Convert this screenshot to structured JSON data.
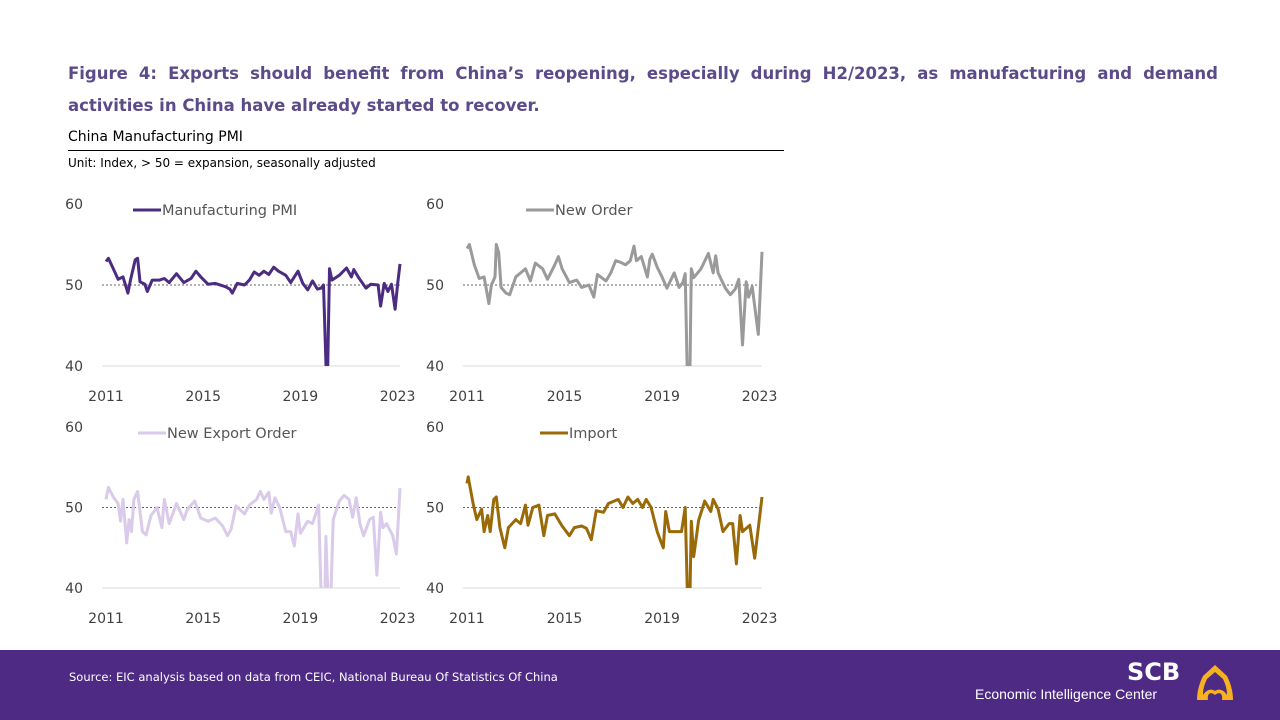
{
  "header": {
    "figure_title": "Figure 4: Exports should benefit from China’s reopening, especially during H2/2023, as manufacturing and demand activities in China have already started to recover.",
    "chart_title": "China Manufacturing PMI",
    "unit": "Unit: Index, > 50 = expansion,  seasonally adjusted"
  },
  "footer": {
    "source": "Source: EIC analysis based on data from CEIC, National Bureau Of Statistics Of China",
    "logo_primary": "SCB",
    "logo_secondary": "Economic Intelligence Center",
    "background_color": "#4e2a84",
    "logo_accent_color": "#f5b21e"
  },
  "chart_data": [
    {
      "type": "line",
      "legend": "Manufacturing PMI",
      "color": "#4b2c80",
      "ylim": [
        40,
        60
      ],
      "yticks": [
        "40",
        "50",
        "60"
      ],
      "xticks": [
        "2011",
        "2015",
        "2019",
        "2023"
      ],
      "reference_line": 50,
      "grid": false,
      "points": [
        [
          2011.0,
          52.9
        ],
        [
          2011.1,
          53.3
        ],
        [
          2011.3,
          52.0
        ],
        [
          2011.5,
          50.7
        ],
        [
          2011.7,
          51.0
        ],
        [
          2011.9,
          49.0
        ],
        [
          2012.0,
          50.5
        ],
        [
          2012.2,
          53.1
        ],
        [
          2012.3,
          53.3
        ],
        [
          2012.4,
          50.4
        ],
        [
          2012.6,
          50.1
        ],
        [
          2012.7,
          49.2
        ],
        [
          2012.9,
          50.6
        ],
        [
          2013.2,
          50.6
        ],
        [
          2013.4,
          50.8
        ],
        [
          2013.6,
          50.3
        ],
        [
          2013.9,
          51.4
        ],
        [
          2014.2,
          50.3
        ],
        [
          2014.5,
          50.8
        ],
        [
          2014.7,
          51.7
        ],
        [
          2014.9,
          51.0
        ],
        [
          2015.2,
          50.1
        ],
        [
          2015.5,
          50.2
        ],
        [
          2015.9,
          49.8
        ],
        [
          2016.1,
          49.5
        ],
        [
          2016.2,
          49.0
        ],
        [
          2016.4,
          50.2
        ],
        [
          2016.7,
          50.0
        ],
        [
          2016.9,
          50.6
        ],
        [
          2017.1,
          51.6
        ],
        [
          2017.3,
          51.2
        ],
        [
          2017.5,
          51.7
        ],
        [
          2017.7,
          51.3
        ],
        [
          2017.9,
          52.2
        ],
        [
          2018.1,
          51.7
        ],
        [
          2018.4,
          51.2
        ],
        [
          2018.6,
          50.3
        ],
        [
          2018.9,
          51.7
        ],
        [
          2019.1,
          50.2
        ],
        [
          2019.3,
          49.4
        ],
        [
          2019.5,
          50.5
        ],
        [
          2019.7,
          49.5
        ],
        [
          2019.85,
          49.6
        ],
        [
          2019.95,
          50.0
        ],
        [
          2020.1,
          35.7
        ],
        [
          2020.2,
          52.0
        ],
        [
          2020.3,
          50.6
        ],
        [
          2020.6,
          51.2
        ],
        [
          2020.9,
          52.1
        ],
        [
          2021.1,
          51.0
        ],
        [
          2021.2,
          51.9
        ],
        [
          2021.4,
          50.9
        ],
        [
          2021.7,
          49.6
        ],
        [
          2021.9,
          50.1
        ],
        [
          2022.2,
          50.0
        ],
        [
          2022.3,
          47.4
        ],
        [
          2022.45,
          50.2
        ],
        [
          2022.6,
          49.2
        ],
        [
          2022.75,
          50.1
        ],
        [
          2022.9,
          47.0
        ],
        [
          2023.0,
          50.1
        ],
        [
          2023.1,
          52.6
        ]
      ]
    },
    {
      "type": "line",
      "legend": "New Order",
      "color": "#9a9a9a",
      "ylim": [
        40,
        60
      ],
      "yticks": [
        "40",
        "50",
        "60"
      ],
      "xticks": [
        "2011",
        "2015",
        "2019",
        "2023"
      ],
      "reference_line": 50,
      "grid": false,
      "points": [
        [
          2011.0,
          54.5
        ],
        [
          2011.1,
          55.0
        ],
        [
          2011.3,
          52.5
        ],
        [
          2011.5,
          50.8
        ],
        [
          2011.7,
          51.0
        ],
        [
          2011.9,
          47.7
        ],
        [
          2012.0,
          50.0
        ],
        [
          2012.15,
          51.0
        ],
        [
          2012.2,
          55.0
        ],
        [
          2012.3,
          54.0
        ],
        [
          2012.4,
          49.7
        ],
        [
          2012.6,
          49.0
        ],
        [
          2012.75,
          48.8
        ],
        [
          2013.0,
          51.0
        ],
        [
          2013.2,
          51.5
        ],
        [
          2013.4,
          52.0
        ],
        [
          2013.6,
          50.5
        ],
        [
          2013.8,
          52.7
        ],
        [
          2014.1,
          52.0
        ],
        [
          2014.3,
          50.7
        ],
        [
          2014.6,
          52.5
        ],
        [
          2014.75,
          53.5
        ],
        [
          2014.9,
          52.0
        ],
        [
          2015.2,
          50.3
        ],
        [
          2015.5,
          50.6
        ],
        [
          2015.7,
          49.7
        ],
        [
          2016.0,
          50.0
        ],
        [
          2016.2,
          48.5
        ],
        [
          2016.35,
          51.3
        ],
        [
          2016.7,
          50.5
        ],
        [
          2016.9,
          51.5
        ],
        [
          2017.1,
          53.0
        ],
        [
          2017.3,
          52.8
        ],
        [
          2017.5,
          52.5
        ],
        [
          2017.7,
          53.0
        ],
        [
          2017.85,
          54.8
        ],
        [
          2017.95,
          53.0
        ],
        [
          2018.15,
          53.5
        ],
        [
          2018.4,
          51.0
        ],
        [
          2018.5,
          53.2
        ],
        [
          2018.6,
          53.8
        ],
        [
          2018.8,
          52.2
        ],
        [
          2019.0,
          51.0
        ],
        [
          2019.2,
          49.6
        ],
        [
          2019.5,
          51.5
        ],
        [
          2019.7,
          49.7
        ],
        [
          2019.85,
          50.3
        ],
        [
          2019.95,
          51.4
        ],
        [
          2020.1,
          29.3
        ],
        [
          2020.2,
          52.0
        ],
        [
          2020.3,
          50.9
        ],
        [
          2020.6,
          52.0
        ],
        [
          2020.9,
          53.9
        ],
        [
          2021.1,
          51.5
        ],
        [
          2021.2,
          53.6
        ],
        [
          2021.3,
          51.5
        ],
        [
          2021.6,
          49.6
        ],
        [
          2021.8,
          48.8
        ],
        [
          2022.0,
          49.5
        ],
        [
          2022.15,
          50.7
        ],
        [
          2022.3,
          42.6
        ],
        [
          2022.45,
          50.4
        ],
        [
          2022.55,
          48.5
        ],
        [
          2022.7,
          49.8
        ],
        [
          2022.95,
          43.9
        ],
        [
          2023.1,
          54.1
        ]
      ]
    },
    {
      "type": "line",
      "legend": "New Export Order",
      "color": "#d9cbe9",
      "ylim": [
        40,
        60
      ],
      "yticks": [
        "40",
        "50",
        "60"
      ],
      "xticks": [
        "2011",
        "2015",
        "2019",
        "2023"
      ],
      "reference_line": 50,
      "grid": false,
      "points": [
        [
          2011.0,
          51.0
        ],
        [
          2011.1,
          52.5
        ],
        [
          2011.3,
          51.3
        ],
        [
          2011.5,
          50.5
        ],
        [
          2011.6,
          48.3
        ],
        [
          2011.7,
          51.0
        ],
        [
          2011.85,
          45.6
        ],
        [
          2011.95,
          48.5
        ],
        [
          2012.05,
          47.0
        ],
        [
          2012.15,
          51.0
        ],
        [
          2012.3,
          52.0
        ],
        [
          2012.5,
          47.0
        ],
        [
          2012.65,
          46.6
        ],
        [
          2012.85,
          49.0
        ],
        [
          2013.1,
          50.0
        ],
        [
          2013.3,
          47.5
        ],
        [
          2013.4,
          51.0
        ],
        [
          2013.6,
          48.0
        ],
        [
          2013.9,
          50.5
        ],
        [
          2014.2,
          48.5
        ],
        [
          2014.35,
          49.8
        ],
        [
          2014.65,
          50.8
        ],
        [
          2014.9,
          48.7
        ],
        [
          2015.2,
          48.3
        ],
        [
          2015.5,
          48.7
        ],
        [
          2015.8,
          47.7
        ],
        [
          2016.0,
          46.5
        ],
        [
          2016.15,
          47.3
        ],
        [
          2016.35,
          50.2
        ],
        [
          2016.7,
          49.2
        ],
        [
          2016.9,
          50.3
        ],
        [
          2017.2,
          51.0
        ],
        [
          2017.35,
          52.0
        ],
        [
          2017.5,
          51.0
        ],
        [
          2017.7,
          51.9
        ],
        [
          2017.8,
          49.3
        ],
        [
          2017.95,
          51.2
        ],
        [
          2018.15,
          50.0
        ],
        [
          2018.4,
          47.0
        ],
        [
          2018.6,
          47.0
        ],
        [
          2018.75,
          45.2
        ],
        [
          2018.9,
          49.2
        ],
        [
          2019.0,
          46.8
        ],
        [
          2019.3,
          48.3
        ],
        [
          2019.5,
          48.0
        ],
        [
          2019.75,
          50.3
        ],
        [
          2019.95,
          28.7
        ],
        [
          2020.05,
          46.4
        ],
        [
          2020.2,
          33.5
        ],
        [
          2020.35,
          48.5
        ],
        [
          2020.6,
          50.8
        ],
        [
          2020.8,
          51.5
        ],
        [
          2021.0,
          51.0
        ],
        [
          2021.15,
          48.8
        ],
        [
          2021.3,
          51.2
        ],
        [
          2021.45,
          48.0
        ],
        [
          2021.6,
          46.5
        ],
        [
          2021.85,
          48.5
        ],
        [
          2022.0,
          48.8
        ],
        [
          2022.15,
          41.6
        ],
        [
          2022.3,
          49.4
        ],
        [
          2022.4,
          47.5
        ],
        [
          2022.55,
          48.0
        ],
        [
          2022.8,
          46.5
        ],
        [
          2022.95,
          44.2
        ],
        [
          2023.1,
          52.4
        ]
      ]
    },
    {
      "type": "line",
      "legend": "Import",
      "color": "#9a6a08",
      "ylim": [
        40,
        60
      ],
      "yticks": [
        "40",
        "50",
        "60"
      ],
      "xticks": [
        "2011",
        "2015",
        "2019",
        "2023"
      ],
      "reference_line": 50,
      "grid": false,
      "points": [
        [
          2011.0,
          53.0
        ],
        [
          2011.05,
          53.8
        ],
        [
          2011.25,
          50.5
        ],
        [
          2011.4,
          48.5
        ],
        [
          2011.6,
          49.8
        ],
        [
          2011.7,
          47.0
        ],
        [
          2011.85,
          49.0
        ],
        [
          2011.95,
          47.0
        ],
        [
          2012.1,
          51.0
        ],
        [
          2012.2,
          51.3
        ],
        [
          2012.35,
          47.5
        ],
        [
          2012.55,
          45.0
        ],
        [
          2012.7,
          47.5
        ],
        [
          2013.0,
          48.5
        ],
        [
          2013.2,
          48.0
        ],
        [
          2013.4,
          50.3
        ],
        [
          2013.5,
          47.8
        ],
        [
          2013.7,
          50.0
        ],
        [
          2013.95,
          50.3
        ],
        [
          2014.15,
          46.5
        ],
        [
          2014.3,
          49.0
        ],
        [
          2014.6,
          49.2
        ],
        [
          2014.9,
          47.7
        ],
        [
          2015.2,
          46.5
        ],
        [
          2015.4,
          47.5
        ],
        [
          2015.7,
          47.7
        ],
        [
          2015.9,
          47.4
        ],
        [
          2016.1,
          46.0
        ],
        [
          2016.3,
          49.6
        ],
        [
          2016.6,
          49.4
        ],
        [
          2016.8,
          50.5
        ],
        [
          2017.2,
          51.0
        ],
        [
          2017.4,
          50.0
        ],
        [
          2017.6,
          51.3
        ],
        [
          2017.8,
          50.5
        ],
        [
          2018.0,
          51.0
        ],
        [
          2018.2,
          50.0
        ],
        [
          2018.35,
          51.0
        ],
        [
          2018.55,
          50.0
        ],
        [
          2018.8,
          47.0
        ],
        [
          2018.95,
          45.8
        ],
        [
          2019.05,
          45.0
        ],
        [
          2019.15,
          49.5
        ],
        [
          2019.3,
          47.0
        ],
        [
          2019.5,
          47.0
        ],
        [
          2019.8,
          47.0
        ],
        [
          2019.95,
          50.0
        ],
        [
          2020.1,
          31.9
        ],
        [
          2020.2,
          48.3
        ],
        [
          2020.3,
          43.9
        ],
        [
          2020.5,
          48.4
        ],
        [
          2020.75,
          50.8
        ],
        [
          2021.0,
          49.5
        ],
        [
          2021.1,
          51.0
        ],
        [
          2021.3,
          49.8
        ],
        [
          2021.5,
          47.0
        ],
        [
          2021.75,
          48.0
        ],
        [
          2021.9,
          48.0
        ],
        [
          2022.05,
          43.0
        ],
        [
          2022.2,
          49.0
        ],
        [
          2022.3,
          47.0
        ],
        [
          2022.6,
          47.8
        ],
        [
          2022.8,
          43.7
        ],
        [
          2023.1,
          51.3
        ]
      ]
    }
  ]
}
